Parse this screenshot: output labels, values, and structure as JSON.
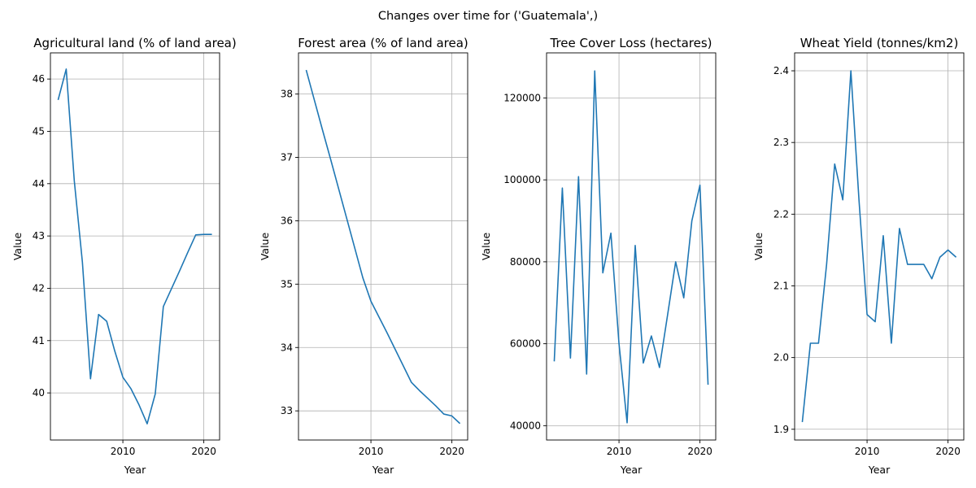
{
  "figure": {
    "suptitle": "Changes over time for ('Guatemala',)",
    "line_color": "#1f77b4"
  },
  "chart_data": [
    {
      "type": "line",
      "title": "Agricultural land (% of land area)",
      "xlabel": "Year",
      "ylabel": "Value",
      "grid": true,
      "xlim": [
        2001.05,
        2021.95
      ],
      "ylim": [
        39.1,
        46.5
      ],
      "xticks": [
        2010,
        2020
      ],
      "yticks": [
        40,
        41,
        42,
        43,
        44,
        45,
        46
      ],
      "x": [
        2002,
        2003,
        2004,
        2005,
        2006,
        2007,
        2008,
        2009,
        2010,
        2011,
        2012,
        2013,
        2014,
        2015,
        2016,
        2017,
        2018,
        2019,
        2020,
        2021
      ],
      "y": [
        45.6,
        46.19,
        44.05,
        42.5,
        40.27,
        41.5,
        41.37,
        40.8,
        40.3,
        40.08,
        39.77,
        39.41,
        39.98,
        41.65,
        41.99,
        42.33,
        42.68,
        43.02,
        43.03,
        43.03
      ]
    },
    {
      "type": "line",
      "title": "Forest area (% of land area)",
      "xlabel": "Year",
      "ylabel": "Value",
      "grid": true,
      "xlim": [
        2001.05,
        2021.95
      ],
      "ylim": [
        32.54,
        38.65
      ],
      "xticks": [
        2010,
        2020
      ],
      "yticks": [
        33,
        34,
        35,
        36,
        37,
        38
      ],
      "x": [
        2002,
        2003,
        2004,
        2005,
        2006,
        2007,
        2008,
        2009,
        2010,
        2011,
        2012,
        2013,
        2014,
        2015,
        2016,
        2017,
        2018,
        2019,
        2020,
        2021
      ],
      "y": [
        38.38,
        37.91,
        37.44,
        36.98,
        36.51,
        36.04,
        35.57,
        35.1,
        34.73,
        34.48,
        34.23,
        33.97,
        33.71,
        33.45,
        33.32,
        33.2,
        33.08,
        32.95,
        32.92,
        32.8
      ]
    },
    {
      "type": "line",
      "title": "Tree Cover Loss (hectares)",
      "xlabel": "Year",
      "ylabel": "Value",
      "grid": true,
      "xlim": [
        2001.05,
        2021.95
      ],
      "ylim": [
        36500,
        131000
      ],
      "xticks": [
        2010,
        2020
      ],
      "yticks": [
        40000,
        60000,
        80000,
        100000,
        120000
      ],
      "x": [
        2002,
        2003,
        2004,
        2005,
        2006,
        2007,
        2008,
        2009,
        2010,
        2011,
        2012,
        2013,
        2014,
        2015,
        2016,
        2017,
        2018,
        2019,
        2020,
        2021
      ],
      "y": [
        55700,
        98000,
        56500,
        100800,
        52600,
        126600,
        77300,
        87000,
        60000,
        40700,
        84000,
        55300,
        61900,
        54200,
        67000,
        80000,
        71200,
        90000,
        98700,
        50000
      ]
    },
    {
      "type": "line",
      "title": "Wheat Yield (tonnes/km2)",
      "xlabel": "Year",
      "ylabel": "Value",
      "grid": true,
      "xlim": [
        2001.05,
        2021.95
      ],
      "ylim": [
        1.885,
        2.425
      ],
      "xticks": [
        2010,
        2020
      ],
      "yticks": [
        1.9,
        2.0,
        2.1,
        2.2,
        2.3,
        2.4
      ],
      "x": [
        2002,
        2003,
        2004,
        2005,
        2006,
        2007,
        2008,
        2009,
        2010,
        2011,
        2012,
        2013,
        2014,
        2015,
        2016,
        2017,
        2018,
        2019,
        2020,
        2021
      ],
      "y": [
        1.91,
        2.02,
        2.02,
        2.13,
        2.27,
        2.22,
        2.4,
        2.22,
        2.06,
        2.05,
        2.17,
        2.02,
        2.18,
        2.13,
        2.13,
        2.13,
        2.11,
        2.14,
        2.15,
        2.14
      ]
    }
  ]
}
